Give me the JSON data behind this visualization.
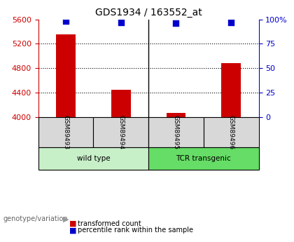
{
  "title": "GDS1934 / 163552_at",
  "samples": [
    "GSM89493",
    "GSM89494",
    "GSM89495",
    "GSM89496"
  ],
  "red_values": [
    5350,
    4440,
    4070,
    4880
  ],
  "blue_values": [
    98,
    97,
    96,
    97
  ],
  "ylim_left": [
    4000,
    5600
  ],
  "ylim_right": [
    0,
    100
  ],
  "yticks_left": [
    4000,
    4400,
    4800,
    5200,
    5600
  ],
  "yticks_right": [
    0,
    25,
    50,
    75,
    100
  ],
  "ytick_labels_right": [
    "0",
    "25",
    "50",
    "75",
    "100%"
  ],
  "groups": [
    {
      "label": "wild type",
      "samples": [
        0,
        1
      ],
      "color": "#c8f0c8"
    },
    {
      "label": "TCR transgenic",
      "samples": [
        2,
        3
      ],
      "color": "#66dd66"
    }
  ],
  "bar_color": "#cc0000",
  "marker_color": "#0000cc",
  "left_axis_color": "#cc0000",
  "right_axis_color": "#0000cc",
  "bg_color": "#ffffff",
  "plot_bg_color": "#ffffff",
  "genotype_label": "genotype/variation",
  "legend_red": "transformed count",
  "legend_blue": "percentile rank within the sample",
  "bar_width": 0.35
}
